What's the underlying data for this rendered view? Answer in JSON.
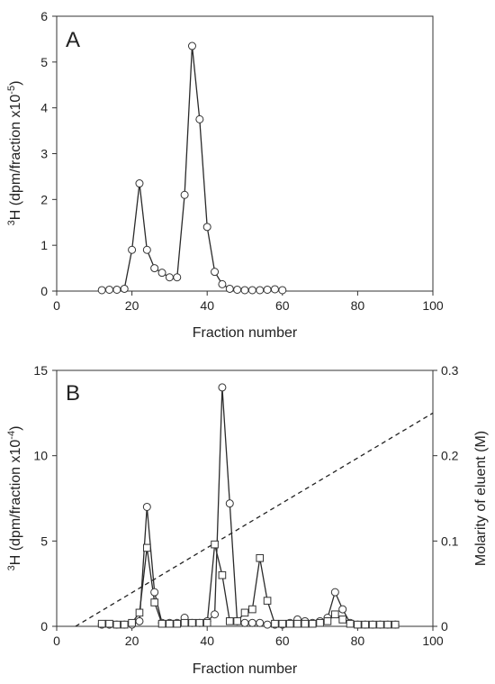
{
  "chart_data": [
    {
      "panel": "A",
      "type": "line",
      "xlabel": "Fraction number",
      "ylabel": "H (dpm/fraction x10",
      "ylabel_sup_pre": "3",
      "ylabel_sup_post": "-5",
      "ylabel_end": ")",
      "xlim": [
        0,
        100
      ],
      "ylim": [
        0,
        6
      ],
      "xticks": [
        0,
        20,
        40,
        60,
        80,
        100
      ],
      "yticks": [
        0,
        1,
        2,
        3,
        4,
        5,
        6
      ],
      "grid": false,
      "series": [
        {
          "marker": "circle",
          "x": [
            12,
            14,
            16,
            18,
            20,
            22,
            24,
            26,
            28,
            30,
            32,
            34,
            36,
            38,
            40,
            42,
            44,
            46,
            48,
            50,
            52,
            54,
            56,
            58,
            60
          ],
          "y": [
            0.02,
            0.03,
            0.03,
            0.05,
            0.9,
            2.35,
            0.9,
            0.5,
            0.4,
            0.3,
            0.3,
            2.1,
            5.35,
            3.75,
            1.4,
            0.42,
            0.15,
            0.05,
            0.03,
            0.02,
            0.02,
            0.02,
            0.03,
            0.04,
            0.02
          ]
        }
      ]
    },
    {
      "panel": "B",
      "type": "line",
      "xlabel": "Fraction number",
      "ylabel": "H (dpm/fraction x10",
      "ylabel_sup_pre": "3",
      "ylabel_sup_post": "-4",
      "ylabel_end": ")",
      "y2label": "Molarity of eluent (M)",
      "xlim": [
        0,
        100
      ],
      "ylim": [
        0,
        15
      ],
      "y2lim": [
        0,
        0.3
      ],
      "xticks": [
        0,
        20,
        40,
        60,
        80,
        100
      ],
      "yticks": [
        0,
        5,
        10,
        15
      ],
      "y2ticks": [
        "0",
        "0.1",
        "0.2",
        "0.3"
      ],
      "y2tick_values": [
        0,
        0.1,
        0.2,
        0.3
      ],
      "grid": false,
      "series": [
        {
          "marker": "circle",
          "x": [
            12,
            14,
            16,
            18,
            20,
            22,
            24,
            26,
            28,
            30,
            32,
            34,
            36,
            38,
            40,
            42,
            44,
            46,
            48,
            50,
            52,
            54,
            56,
            58,
            60,
            62,
            64,
            66,
            68,
            70,
            72,
            74,
            76,
            78,
            80,
            82,
            84,
            86,
            88,
            90
          ],
          "y": [
            0.1,
            0.1,
            0.1,
            0.1,
            0.1,
            0.3,
            7.0,
            2.0,
            0.2,
            0.2,
            0.2,
            0.5,
            0.2,
            0.2,
            0.3,
            0.7,
            14.0,
            7.2,
            0.3,
            0.2,
            0.2,
            0.2,
            0.1,
            0.1,
            0.1,
            0.2,
            0.4,
            0.3,
            0.2,
            0.3,
            0.5,
            2.0,
            1.0,
            0.2,
            0.1,
            0.1,
            0.1,
            0.1,
            0.1,
            0.1
          ]
        },
        {
          "marker": "square",
          "x": [
            12,
            14,
            16,
            18,
            20,
            22,
            24,
            26,
            28,
            30,
            32,
            34,
            36,
            38,
            40,
            42,
            44,
            46,
            48,
            50,
            52,
            54,
            56,
            58,
            60,
            62,
            64,
            66,
            68,
            70,
            72,
            74,
            76,
            78,
            80,
            82,
            84,
            86,
            88,
            90
          ],
          "y": [
            0.15,
            0.15,
            0.1,
            0.1,
            0.2,
            0.8,
            4.6,
            1.4,
            0.15,
            0.15,
            0.15,
            0.2,
            0.2,
            0.2,
            0.2,
            4.8,
            3.0,
            0.3,
            0.3,
            0.8,
            1.0,
            4.0,
            1.5,
            0.15,
            0.15,
            0.15,
            0.15,
            0.15,
            0.15,
            0.2,
            0.3,
            0.7,
            0.4,
            0.15,
            0.1,
            0.1,
            0.1,
            0.1,
            0.1,
            0.1
          ]
        }
      ],
      "gradient": {
        "axis": "y2",
        "x": [
          5,
          100
        ],
        "y": [
          0,
          0.25
        ]
      }
    }
  ]
}
